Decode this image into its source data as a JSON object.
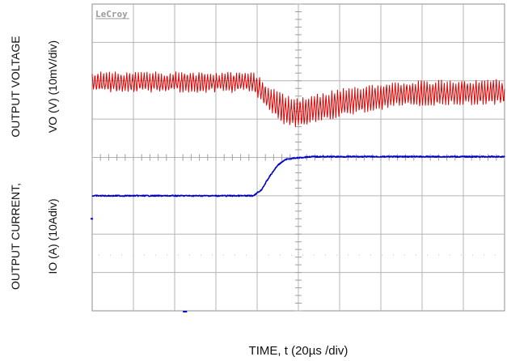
{
  "chart_data": {
    "type": "line",
    "instrument_logo": "LeCroy",
    "xlabel": "TIME, t (20µs /div)",
    "top_panel": {
      "ylabel_line1": "OUTPUT VOLTAGE",
      "ylabel_line2": "VO (V) (10mV/div)"
    },
    "bottom_panel": {
      "ylabel_line1": "OUTPUT CURRENT,",
      "ylabel_line2": "IO (A)  (10Adiv)"
    },
    "grid": true,
    "divisions": {
      "x": 10,
      "y": 8
    },
    "series": [
      {
        "trace": "output-voltage",
        "color": "#dd0000",
        "x_div": [
          0,
          3.9,
          4.3,
          4.7,
          5.0,
          6.0,
          7.5,
          10
        ],
        "center_div": [
          2.05,
          2.05,
          2.5,
          2.8,
          2.85,
          2.6,
          2.35,
          2.3
        ],
        "ripple_div": [
          0.45,
          0.45,
          0.6,
          0.7,
          0.7,
          0.65,
          0.58,
          0.58
        ]
      },
      {
        "trace": "output-current",
        "color": "#0000cc",
        "x_div": [
          0,
          3.9,
          4.1,
          4.3,
          4.5,
          4.7,
          4.9,
          5.3,
          6.0,
          10
        ],
        "y_div": [
          5.0,
          5.0,
          4.85,
          4.5,
          4.2,
          4.05,
          4.02,
          3.98,
          3.98,
          3.98
        ]
      }
    ]
  }
}
